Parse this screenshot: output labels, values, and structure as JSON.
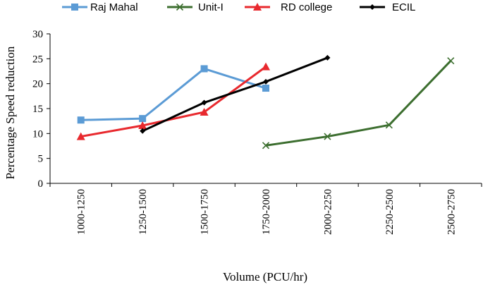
{
  "chart_data": {
    "type": "line",
    "title": "",
    "xlabel": "Volume (PCU/hr)",
    "ylabel": "Percentage Speed reduction",
    "ylim": [
      0,
      30
    ],
    "yticks": [
      0,
      5,
      10,
      15,
      20,
      25,
      30
    ],
    "grid": false,
    "legend_position": "top",
    "categories": [
      "1000-1250",
      "1250-1500",
      "1500-1750",
      "1750-2000",
      "2000-2250",
      "2250-2500",
      "2500-2750"
    ],
    "series": [
      {
        "name": "Raj Mahal",
        "color": "#5b9bd5",
        "marker": "square",
        "values": [
          12.7,
          13.0,
          23.0,
          19.1,
          null,
          null,
          null
        ]
      },
      {
        "name": "Unit-I",
        "color": "#3c6e2f",
        "marker": "x",
        "values": [
          null,
          null,
          null,
          7.6,
          9.4,
          11.7,
          24.6
        ]
      },
      {
        "name": "RD college",
        "color": "#e8292e",
        "marker": "triangle",
        "values": [
          9.4,
          11.6,
          14.3,
          23.4,
          null,
          null,
          null
        ]
      },
      {
        "name": "ECIL",
        "color": "#000000",
        "marker": "diamond",
        "values": [
          null,
          10.5,
          16.2,
          20.4,
          25.2,
          null,
          null
        ]
      }
    ]
  }
}
